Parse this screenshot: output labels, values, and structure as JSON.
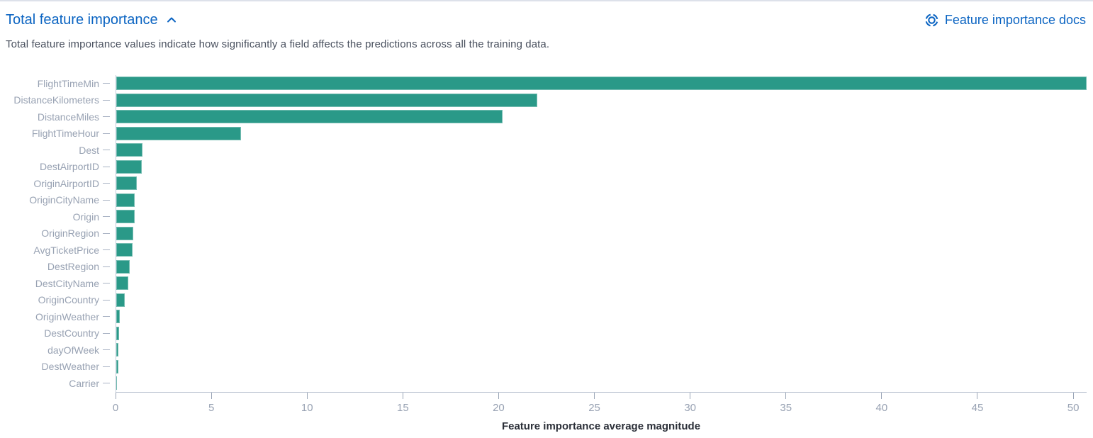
{
  "header": {
    "title": "Total feature importance",
    "collapse_icon": "chevron-up-icon",
    "docs_link_label": "Feature importance docs",
    "docs_icon": "help-docs-icon"
  },
  "subtitle": "Total feature importance values indicate how significantly a field affects the predictions across all the training data.",
  "colors": {
    "link_blue": "#0b64c2",
    "bar_teal": "#2a9988",
    "axis_text_gray": "#98a2b3",
    "subtitle_text": "#49505e",
    "xlabel_text": "#2b2f38"
  },
  "chart_data": {
    "type": "bar",
    "orientation": "horizontal",
    "title": "Total feature importance",
    "xlabel": "Feature importance average magnitude",
    "ylabel": "",
    "categories": [
      "FlightTimeMin",
      "DistanceKilometers",
      "DistanceMiles",
      "FlightTimeHour",
      "Dest",
      "DestAirportID",
      "OriginAirportID",
      "OriginCityName",
      "Origin",
      "OriginRegion",
      "AvgTicketPrice",
      "DestRegion",
      "DestCityName",
      "OriginCountry",
      "OriginWeather",
      "DestCountry",
      "dayOfWeek",
      "DestWeather",
      "Carrier"
    ],
    "values": [
      50.7,
      22.0,
      20.2,
      6.5,
      1.37,
      1.32,
      1.08,
      0.97,
      0.95,
      0.88,
      0.84,
      0.72,
      0.62,
      0.43,
      0.2,
      0.15,
      0.12,
      0.1,
      0.03
    ],
    "xlim": [
      0,
      50.7
    ],
    "xticks": [
      0,
      5,
      10,
      15,
      20,
      25,
      30,
      35,
      40,
      45,
      50
    ],
    "grid": false,
    "legend": "none",
    "bar_color": "#2a9988"
  }
}
